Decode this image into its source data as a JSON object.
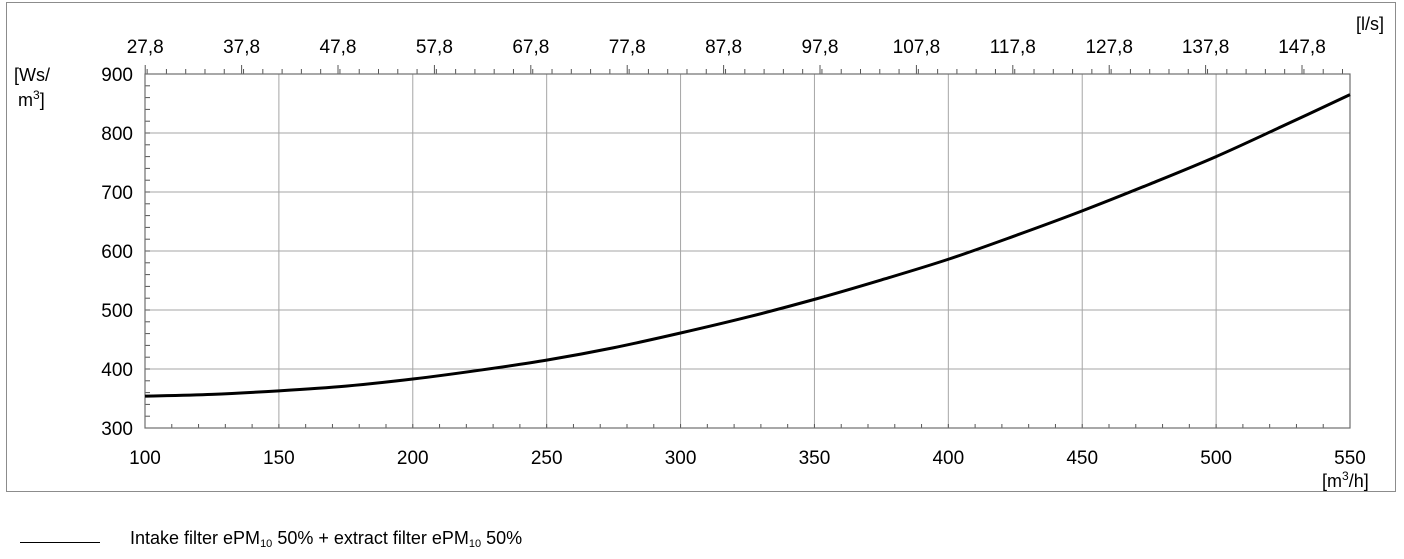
{
  "chart_data": {
    "type": "line",
    "x_bottom": {
      "unit_parts": [
        "[m",
        "3",
        "/h]"
      ],
      "ticks": [
        "100",
        "150",
        "200",
        "250",
        "300",
        "350",
        "400",
        "450",
        "500",
        "550"
      ],
      "range": [
        100,
        550
      ]
    },
    "x_top": {
      "unit": "[l/s]",
      "ticks": [
        "27,8",
        "37,8",
        "47,8",
        "57,8",
        "67,8",
        "77,8",
        "87,8",
        "97,8",
        "107,8",
        "117,8",
        "127,8",
        "137,8",
        "147,8"
      ]
    },
    "y": {
      "unit_line1": "[Ws/",
      "unit_line2_parts": [
        "m",
        "3",
        "]"
      ],
      "ticks": [
        "300",
        "400",
        "500",
        "600",
        "700",
        "800",
        "900"
      ],
      "range": [
        300,
        900
      ]
    },
    "grid": true,
    "series": [
      {
        "name_parts": [
          "Intake filter ePM",
          "10",
          " 50% + extract filter ePM",
          "10",
          " 50%"
        ],
        "color": "#000000",
        "x": [
          100,
          125,
          150,
          175,
          200,
          225,
          250,
          275,
          300,
          325,
          350,
          375,
          400,
          425,
          450,
          475,
          500,
          525,
          550
        ],
        "y": [
          354,
          357,
          363,
          371,
          383,
          398,
          415,
          436,
          461,
          488,
          518,
          551,
          586,
          626,
          668,
          713,
          760,
          812,
          865
        ]
      }
    ],
    "legend_position": "bottom-left"
  }
}
